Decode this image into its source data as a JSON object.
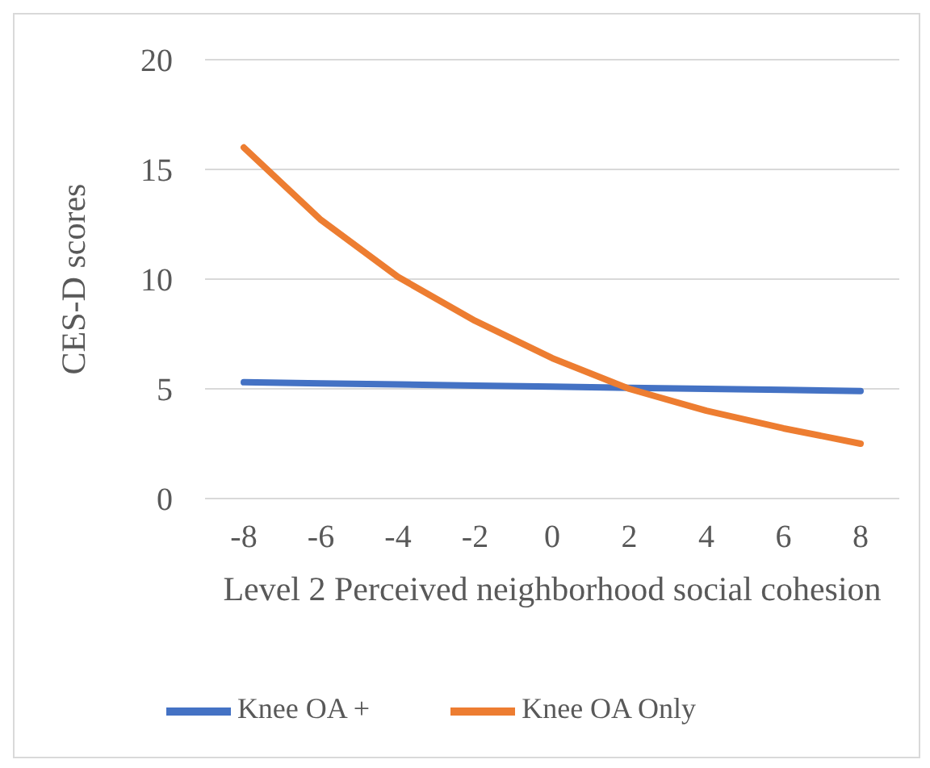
{
  "chart_data": {
    "type": "line",
    "xlabel": "Level 2 Perceived neighborhood social cohesion",
    "ylabel": "CES-D scores",
    "categories": [
      "-8",
      "-6",
      "-4",
      "-2",
      "0",
      "2",
      "4",
      "6",
      "8"
    ],
    "series": [
      {
        "name": "Knee OA +",
        "color": "#4472c4",
        "values": [
          5.3,
          5.25,
          5.2,
          5.15,
          5.1,
          5.05,
          5.0,
          4.95,
          4.9
        ]
      },
      {
        "name": "Knee OA Only",
        "color": "#ed7d31",
        "values": [
          16,
          12.7,
          10.1,
          8.1,
          6.4,
          5.0,
          4.0,
          3.2,
          2.5
        ]
      }
    ],
    "ylim": [
      0,
      20
    ],
    "yticks": [
      0,
      5,
      10,
      15,
      20
    ],
    "grid": "y",
    "legend": "bottom",
    "marker": "none",
    "line_style": "solid"
  }
}
